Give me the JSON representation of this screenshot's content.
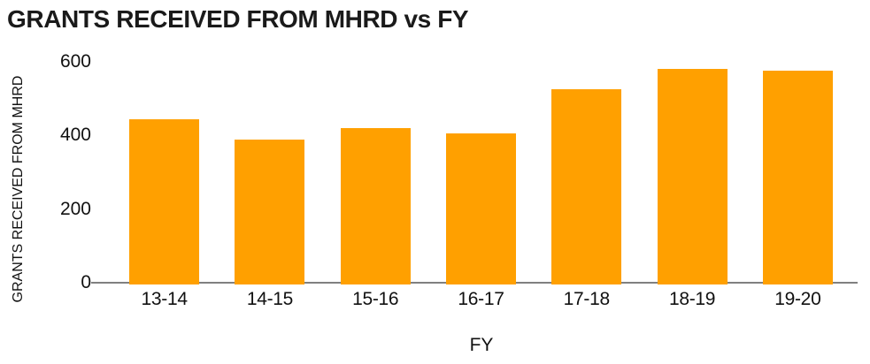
{
  "chart_data": {
    "type": "bar",
    "title": "GRANTS RECEIVED FROM MHRD vs FY",
    "xlabel": "FY",
    "ylabel": "GRANTS RECEIVED FROM MHRD",
    "categories": [
      "13-14",
      "14-15",
      "15-16",
      "16-17",
      "17-18",
      "18-19",
      "19-20"
    ],
    "values": [
      445,
      390,
      420,
      405,
      525,
      580,
      577
    ],
    "yticks": [
      0,
      200,
      400,
      600
    ],
    "ylim": [
      0,
      600
    ],
    "grid": false,
    "legend": false,
    "colors": {
      "bar": "#FFA000",
      "axis_line": "#808080",
      "title_text": "#1a1a1a",
      "tick_text": "#111111",
      "background": "#ffffff"
    }
  }
}
